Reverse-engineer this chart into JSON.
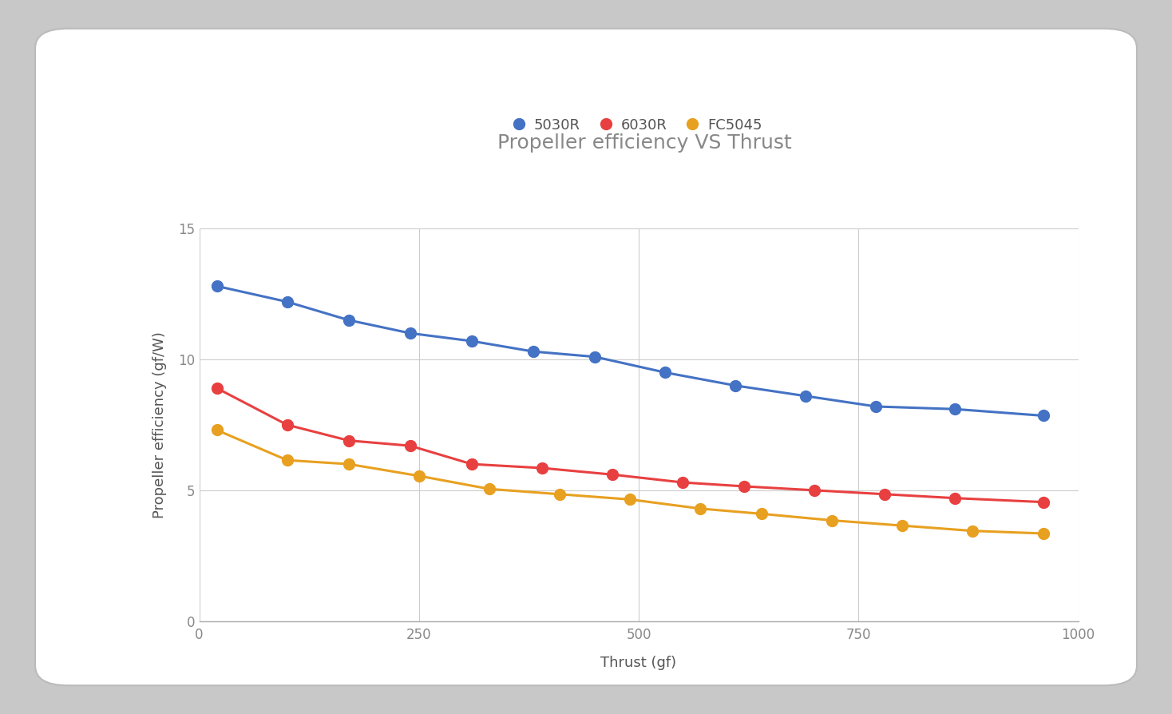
{
  "title": "Propeller efficiency VS Thrust",
  "xlabel": "Thrust (gf)",
  "ylabel": "Propeller efficiency (gf/W)",
  "series": [
    {
      "label": "5030R",
      "color": "#4472C4",
      "thrust": [
        20,
        100,
        170,
        240,
        310,
        380,
        450,
        530,
        610,
        690,
        770,
        860,
        960
      ],
      "efficiency": [
        12.8,
        12.2,
        11.5,
        11.0,
        10.7,
        10.3,
        10.1,
        9.5,
        9.0,
        8.6,
        8.2,
        8.1,
        7.85
      ]
    },
    {
      "label": "6030R",
      "color": "#E84040",
      "thrust": [
        20,
        100,
        170,
        240,
        310,
        390,
        470,
        550,
        620,
        700,
        780,
        860,
        960
      ],
      "efficiency": [
        8.9,
        7.5,
        6.9,
        6.7,
        6.0,
        5.85,
        5.6,
        5.3,
        5.15,
        5.0,
        4.85,
        4.7,
        4.55
      ]
    },
    {
      "label": "FC5045",
      "color": "#E8A020",
      "thrust": [
        20,
        100,
        170,
        250,
        330,
        410,
        490,
        570,
        640,
        720,
        800,
        880,
        960
      ],
      "efficiency": [
        7.3,
        6.15,
        6.0,
        5.55,
        5.05,
        4.85,
        4.65,
        4.3,
        4.1,
        3.85,
        3.65,
        3.45,
        3.35
      ]
    }
  ],
  "xlim": [
    0,
    1000
  ],
  "ylim": [
    0,
    15
  ],
  "xticks": [
    0,
    250,
    500,
    750,
    1000
  ],
  "yticks": [
    0,
    5,
    10,
    15
  ],
  "title_fontsize": 18,
  "axis_label_fontsize": 13,
  "tick_fontsize": 12,
  "legend_fontsize": 13,
  "marker_size": 10,
  "line_width": 2.2,
  "outer_bg_color": "#C8C8C8",
  "card_color": "#FFFFFF",
  "background_color": "#FFFFFF",
  "grid_color": "#CCCCCC",
  "title_color": "#888888",
  "axis_label_color": "#555555",
  "tick_color": "#888888"
}
